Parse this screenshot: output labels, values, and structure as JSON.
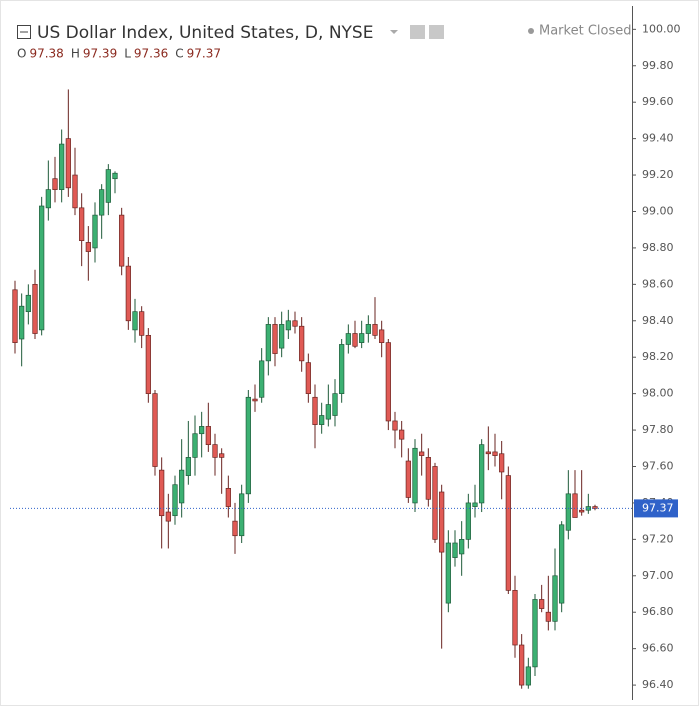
{
  "chart_data": {
    "type": "candlestick",
    "title": "US Dollar Index, United States, D, NYSE",
    "status": "Market Closed",
    "ohlc_legend": [
      {
        "label": "O",
        "value": 97.38
      },
      {
        "label": "H",
        "value": 97.39
      },
      {
        "label": "L",
        "value": 97.36
      },
      {
        "label": "C",
        "value": 97.37
      }
    ],
    "last_price": 97.37,
    "up_color": "#3cb072",
    "down_color": "#e05a55",
    "price_line_color": "#2f62c9",
    "ylim": [
      96.36,
      100.02
    ],
    "yticks": [
      {
        "value": 100.0,
        "label": "100.00"
      },
      {
        "value": 99.8,
        "label": "99.80"
      },
      {
        "value": 99.6,
        "label": "99.60"
      },
      {
        "value": 99.4,
        "label": "99.40"
      },
      {
        "value": 99.2,
        "label": "99.20"
      },
      {
        "value": 99.0,
        "label": "99.00"
      },
      {
        "value": 98.8,
        "label": "98.80"
      },
      {
        "value": 98.6,
        "label": "98.60"
      },
      {
        "value": 98.4,
        "label": "98.40"
      },
      {
        "value": 98.2,
        "label": "98.20"
      },
      {
        "value": 98.0,
        "label": "98.00"
      },
      {
        "value": 97.8,
        "label": "97.80"
      },
      {
        "value": 97.6,
        "label": "97.60"
      },
      {
        "value": 97.4,
        "label": "97.40"
      },
      {
        "value": 97.2,
        "label": "97.20"
      },
      {
        "value": 97.0,
        "label": "97.00"
      },
      {
        "value": 96.8,
        "label": "96.80"
      },
      {
        "value": 96.6,
        "label": "96.60"
      },
      {
        "value": 96.4,
        "label": "96.40"
      }
    ],
    "open": [
      98.57,
      98.3,
      98.45,
      98.6,
      98.35,
      99.02,
      99.18,
      99.12,
      99.4,
      99.2,
      99.02,
      98.83,
      98.8,
      98.98,
      99.05,
      99.18,
      98.98,
      98.7,
      98.35,
      98.45,
      98.32,
      98.0,
      97.58,
      97.35,
      97.33,
      97.4,
      97.55,
      97.65,
      97.78,
      97.82,
      97.72,
      97.67,
      97.48,
      97.3,
      97.22,
      97.45,
      97.97,
      97.98,
      98.18,
      98.38,
      98.25,
      98.35,
      98.4,
      98.37,
      98.17,
      97.98,
      97.83,
      97.86,
      97.88,
      98.0,
      98.27,
      98.33,
      98.28,
      98.33,
      98.38,
      98.35,
      98.28,
      97.85,
      97.8,
      97.63,
      97.4,
      97.68,
      97.65,
      97.6,
      97.46,
      96.85,
      97.1,
      97.12,
      97.2,
      97.38,
      97.4,
      97.68,
      97.68,
      97.67,
      97.55,
      96.92,
      96.62,
      96.4,
      96.5,
      96.87,
      96.8,
      96.75,
      96.85,
      97.25,
      97.45,
      97.36,
      97.36,
      97.38
    ],
    "high": [
      98.62,
      98.55,
      98.6,
      98.68,
      99.08,
      99.28,
      99.3,
      99.45,
      99.67,
      99.35,
      99.1,
      98.92,
      99.05,
      99.15,
      99.26,
      99.22,
      99.02,
      98.75,
      98.52,
      98.48,
      98.36,
      98.02,
      97.65,
      97.45,
      97.55,
      97.75,
      97.85,
      97.88,
      97.9,
      97.95,
      97.78,
      97.7,
      97.55,
      97.4,
      97.5,
      98.02,
      98.05,
      98.25,
      98.42,
      98.42,
      98.45,
      98.46,
      98.45,
      98.42,
      98.22,
      98.05,
      97.95,
      98.05,
      98.08,
      98.3,
      98.38,
      98.4,
      98.4,
      98.43,
      98.53,
      98.4,
      98.3,
      97.9,
      97.85,
      97.7,
      97.75,
      97.78,
      97.7,
      97.62,
      97.5,
      97.25,
      97.25,
      97.3,
      97.45,
      97.5,
      97.75,
      97.82,
      97.78,
      97.74,
      97.6,
      97.0,
      96.68,
      96.55,
      96.9,
      96.95,
      97.0,
      97.15,
      97.3,
      97.58,
      97.58,
      97.58,
      97.45,
      97.39
    ],
    "low": [
      98.22,
      98.15,
      98.38,
      98.3,
      98.32,
      98.95,
      99.05,
      99.05,
      99.08,
      98.98,
      98.7,
      98.62,
      98.72,
      98.85,
      98.98,
      99.1,
      98.65,
      98.35,
      98.28,
      98.25,
      97.95,
      97.55,
      97.15,
      97.15,
      97.28,
      97.32,
      97.5,
      97.55,
      97.65,
      97.68,
      97.55,
      97.45,
      97.32,
      97.12,
      97.18,
      97.4,
      97.9,
      97.95,
      98.1,
      98.15,
      98.2,
      98.3,
      98.33,
      98.12,
      97.95,
      97.7,
      97.78,
      97.82,
      97.82,
      97.95,
      98.22,
      98.25,
      98.25,
      98.28,
      98.3,
      98.2,
      97.8,
      97.7,
      97.65,
      97.4,
      97.35,
      97.55,
      97.38,
      97.18,
      96.6,
      96.8,
      97.05,
      97.0,
      97.15,
      97.32,
      97.35,
      97.58,
      97.6,
      97.42,
      96.9,
      96.55,
      96.38,
      96.38,
      96.45,
      96.8,
      96.7,
      96.7,
      96.8,
      97.2,
      97.32,
      97.33,
      97.34,
      97.36
    ],
    "close": [
      98.28,
      98.48,
      98.54,
      98.33,
      99.03,
      99.12,
      99.12,
      99.37,
      99.13,
      99.02,
      98.84,
      98.78,
      98.98,
      99.12,
      99.23,
      99.21,
      98.7,
      98.4,
      98.45,
      98.32,
      98.0,
      97.6,
      97.33,
      97.3,
      97.5,
      97.58,
      97.65,
      97.78,
      97.82,
      97.72,
      97.65,
      97.65,
      97.38,
      97.22,
      97.45,
      97.98,
      97.96,
      98.18,
      98.38,
      98.22,
      98.38,
      98.4,
      98.37,
      98.18,
      98.0,
      97.83,
      97.88,
      97.94,
      98.0,
      98.27,
      98.33,
      98.26,
      98.33,
      98.38,
      98.32,
      98.28,
      97.85,
      97.8,
      97.75,
      97.43,
      97.7,
      97.66,
      97.42,
      97.2,
      97.13,
      97.18,
      97.18,
      97.2,
      97.4,
      97.4,
      97.72,
      97.67,
      97.66,
      97.57,
      96.92,
      96.62,
      96.4,
      96.5,
      96.87,
      96.82,
      96.75,
      97.0,
      97.28,
      97.45,
      97.32,
      97.35,
      97.38,
      97.37
    ]
  }
}
